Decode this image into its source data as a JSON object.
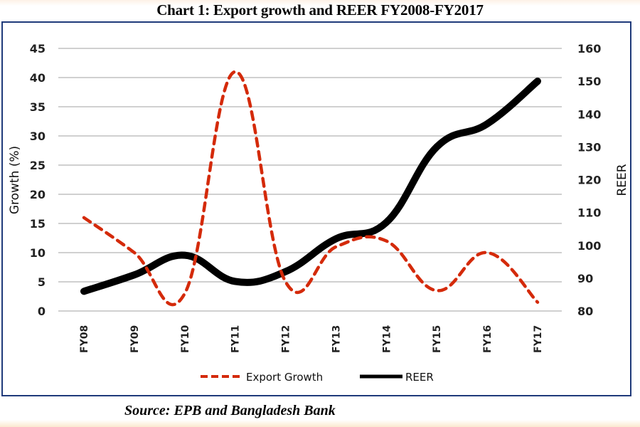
{
  "chart_data": {
    "type": "line",
    "title": "Chart 1: Export growth and REER FY2008-FY2017",
    "source": "Source: EPB and Bangladesh Bank",
    "categories": [
      "FY08",
      "FY09",
      "FY10",
      "FY11",
      "FY12",
      "FY13",
      "FY14",
      "FY15",
      "FY16",
      "FY17"
    ],
    "series": [
      {
        "name": "Export Growth",
        "axis": "left",
        "style": "dashed",
        "color": "#d42a0a",
        "values": [
          16.0,
          10.0,
          3.0,
          41.0,
          5.0,
          11.0,
          12.0,
          3.5,
          10.0,
          1.5
        ]
      },
      {
        "name": "REER",
        "axis": "right",
        "style": "solid",
        "color": "#000000",
        "values": [
          86,
          91,
          97,
          89,
          92,
          102,
          107,
          130,
          137,
          150
        ]
      }
    ],
    "ylabel": "Growth (%)",
    "y2label": "REER",
    "xlabel": "",
    "ylim": [
      0,
      45
    ],
    "y2lim": [
      80,
      160
    ],
    "yticks": [
      "0",
      "5",
      "10",
      "15",
      "20",
      "25",
      "30",
      "35",
      "40",
      "45"
    ],
    "y2ticks": [
      "80",
      "90",
      "100",
      "110",
      "120",
      "130",
      "140",
      "150",
      "160"
    ],
    "grid": true,
    "legend_position": "bottom-center",
    "smoothed": true
  }
}
